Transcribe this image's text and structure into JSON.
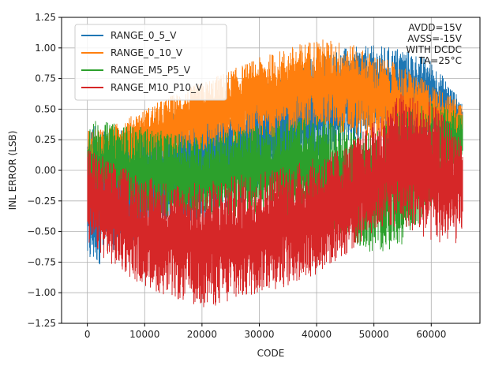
{
  "chart_data": {
    "type": "line",
    "xlabel": "CODE",
    "ylabel": "INL ERROR (LSB)",
    "xlim": [
      -4500,
      68500
    ],
    "ylim": [
      -1.25,
      1.25
    ],
    "xticks": [
      0,
      10000,
      20000,
      30000,
      40000,
      50000,
      60000
    ],
    "xtick_labels": [
      "0",
      "10000",
      "20000",
      "30000",
      "40000",
      "50000",
      "60000"
    ],
    "yticks": [
      -1.25,
      -1.0,
      -0.75,
      -0.5,
      -0.25,
      0.0,
      0.25,
      0.5,
      0.75,
      1.0,
      1.25
    ],
    "ytick_labels": [
      "−1.25",
      "−1.00",
      "−0.75",
      "−0.50",
      "−0.25",
      "0.00",
      "0.25",
      "0.50",
      "0.75",
      "1.00",
      "1.25"
    ],
    "grid": true,
    "legend_position": "top-left",
    "annotation_lines": [
      "AVDD=15V",
      "AVSS=-15V",
      "WITH DCDC",
      "TA=25°C"
    ],
    "series": [
      {
        "name": "RANGE_0_5_V",
        "color": "#1f77b4",
        "x": [
          0,
          5000,
          10000,
          15000,
          20000,
          25000,
          30000,
          35000,
          40000,
          45000,
          50000,
          55000,
          60000,
          65535
        ],
        "upper": [
          0.38,
          0.35,
          0.4,
          0.48,
          0.55,
          0.6,
          0.7,
          0.8,
          0.95,
          1.0,
          1.02,
          1.0,
          0.9,
          0.55
        ],
        "lower": [
          -0.82,
          -0.7,
          -0.55,
          -0.45,
          -0.4,
          -0.3,
          -0.2,
          -0.05,
          0.1,
          0.2,
          0.3,
          0.35,
          0.3,
          0.25
        ]
      },
      {
        "name": "RANGE_0_10_V",
        "color": "#ff7f0e",
        "x": [
          0,
          5000,
          10000,
          15000,
          20000,
          25000,
          30000,
          35000,
          40000,
          45000,
          50000,
          55000,
          60000,
          65535
        ],
        "upper": [
          0.32,
          0.38,
          0.5,
          0.62,
          0.72,
          0.82,
          0.92,
          1.0,
          1.08,
          1.05,
          0.95,
          0.85,
          0.7,
          0.55
        ],
        "lower": [
          -0.05,
          0.0,
          0.05,
          0.1,
          0.15,
          0.2,
          0.25,
          0.3,
          0.35,
          0.3,
          0.25,
          0.2,
          0.2,
          0.2
        ]
      },
      {
        "name": "RANGE_M5_P5_V",
        "color": "#2ca02c",
        "x": [
          0,
          5000,
          10000,
          15000,
          20000,
          25000,
          30000,
          35000,
          40000,
          45000,
          50000,
          55000,
          60000,
          65535
        ],
        "upper": [
          0.42,
          0.38,
          0.35,
          0.3,
          0.28,
          0.32,
          0.38,
          0.42,
          0.45,
          0.4,
          0.3,
          0.5,
          0.55,
          0.48
        ],
        "lower": [
          -0.3,
          -0.35,
          -0.38,
          -0.4,
          -0.4,
          -0.38,
          -0.35,
          -0.4,
          -0.45,
          -0.55,
          -0.7,
          -0.6,
          -0.3,
          0.05
        ]
      },
      {
        "name": "RANGE_M10_P10_V",
        "color": "#d62728",
        "x": [
          0,
          5000,
          10000,
          15000,
          20000,
          25000,
          30000,
          35000,
          40000,
          45000,
          50000,
          55000,
          60000,
          65535
        ],
        "upper": [
          0.2,
          0.05,
          -0.05,
          -0.1,
          -0.1,
          -0.05,
          0.0,
          0.05,
          0.1,
          0.2,
          0.4,
          0.65,
          0.55,
          0.3
        ],
        "lower": [
          -0.6,
          -0.8,
          -0.95,
          -1.05,
          -1.12,
          -1.1,
          -1.0,
          -0.95,
          -0.85,
          -0.7,
          -0.5,
          -0.45,
          -0.6,
          -0.6
        ]
      }
    ]
  }
}
